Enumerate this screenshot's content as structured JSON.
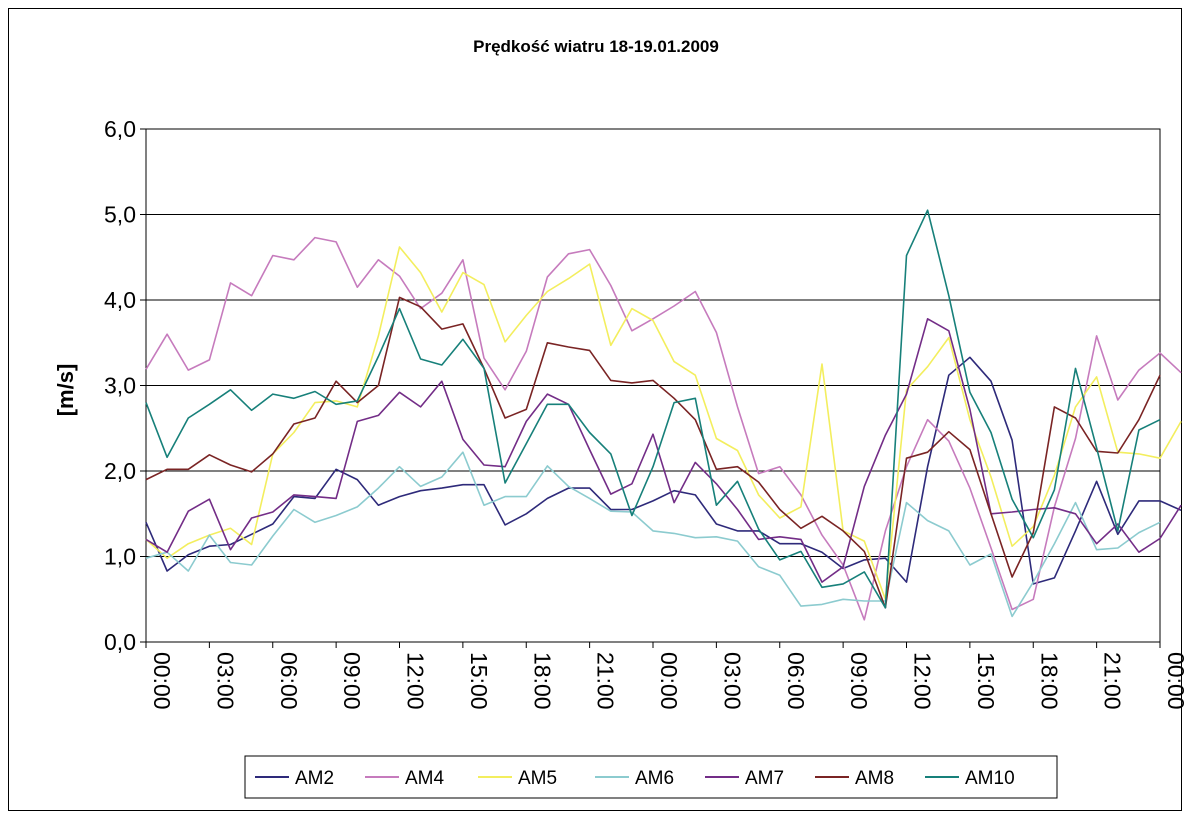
{
  "chart_data": {
    "type": "line",
    "title": "Prędkość wiatru  18-19.01.2009",
    "ylabel": "[m/s]",
    "xlabel": "",
    "ylim": [
      0,
      6
    ],
    "yticks": [
      "0,0",
      "1,0",
      "2,0",
      "3,0",
      "4,0",
      "5,0",
      "6,0"
    ],
    "x_tick_labels": [
      "00:00",
      "03:00",
      "06:00",
      "09:00",
      "12:00",
      "15:00",
      "18:00",
      "21:00",
      "00:00",
      "03:00",
      "06:00",
      "09:00",
      "12:00",
      "15:00",
      "18:00",
      "21:00",
      "00:00"
    ],
    "grid": "horizontal",
    "legend_position": "bottom",
    "series": [
      {
        "name": "AM2",
        "color": "#2e2a7a",
        "values": [
          1.4,
          0.83,
          1.02,
          1.12,
          1.14,
          1.26,
          1.38,
          1.7,
          1.68,
          2.02,
          1.9,
          1.6,
          1.7,
          1.77,
          1.8,
          1.84,
          1.84,
          1.37,
          1.5,
          1.68,
          1.8,
          1.8,
          1.55,
          1.55,
          1.65,
          1.77,
          1.72,
          1.38,
          1.3,
          1.3,
          1.15,
          1.15,
          1.05,
          0.86,
          0.96,
          0.98,
          0.7,
          2.05,
          3.12,
          3.33,
          3.05,
          2.36,
          0.68,
          0.75,
          1.3,
          1.88,
          1.26,
          1.65,
          1.65,
          1.54
        ]
      },
      {
        "name": "AM4",
        "color": "#c67bbd",
        "values": [
          3.19,
          3.6,
          3.18,
          3.3,
          4.2,
          4.05,
          4.52,
          4.47,
          4.73,
          4.68,
          4.15,
          4.47,
          4.28,
          3.9,
          4.08,
          4.47,
          3.32,
          2.95,
          3.4,
          4.27,
          4.54,
          4.59,
          4.17,
          3.64,
          3.78,
          3.93,
          4.1,
          3.62,
          2.75,
          1.97,
          2.05,
          1.72,
          1.25,
          0.9,
          0.26,
          1.3,
          2.05,
          2.6,
          2.35,
          1.8,
          1.1,
          0.38,
          0.5,
          1.58,
          2.38,
          3.58,
          2.83,
          3.18,
          3.38,
          3.15
        ]
      },
      {
        "name": "AM5",
        "color": "#f3ee5e",
        "values": [
          1.2,
          0.98,
          1.15,
          1.25,
          1.33,
          1.14,
          2.2,
          2.45,
          2.8,
          2.82,
          2.75,
          3.58,
          4.62,
          4.32,
          3.86,
          4.32,
          4.18,
          3.51,
          3.82,
          4.1,
          4.25,
          4.42,
          3.47,
          3.9,
          3.76,
          3.28,
          3.12,
          2.38,
          2.24,
          1.72,
          1.45,
          1.58,
          3.25,
          1.3,
          1.18,
          0.5,
          2.95,
          3.22,
          3.56,
          2.6,
          1.93,
          1.12,
          1.35,
          1.95,
          2.75,
          3.1,
          2.22,
          2.2,
          2.15,
          2.58
        ]
      },
      {
        "name": "AM6",
        "color": "#8ccbcf",
        "values": [
          0.98,
          1.05,
          0.83,
          1.25,
          0.93,
          0.9,
          1.24,
          1.55,
          1.4,
          1.48,
          1.58,
          1.8,
          2.05,
          1.82,
          1.93,
          2.22,
          1.6,
          1.7,
          1.7,
          2.06,
          1.82,
          1.68,
          1.53,
          1.52,
          1.3,
          1.27,
          1.22,
          1.23,
          1.18,
          0.88,
          0.78,
          0.42,
          0.44,
          0.5,
          0.48,
          0.48,
          1.63,
          1.42,
          1.3,
          0.9,
          1.03,
          0.3,
          0.7,
          1.15,
          1.63,
          1.08,
          1.1,
          1.28,
          1.4
        ]
      },
      {
        "name": "AM7",
        "color": "#732d87",
        "values": [
          1.2,
          1.05,
          1.53,
          1.67,
          1.08,
          1.45,
          1.52,
          1.72,
          1.7,
          1.68,
          2.58,
          2.65,
          2.92,
          2.75,
          3.05,
          2.37,
          2.07,
          2.05,
          2.58,
          2.9,
          2.78,
          2.25,
          1.73,
          1.85,
          2.43,
          1.63,
          2.1,
          1.85,
          1.55,
          1.2,
          1.23,
          1.2,
          0.7,
          0.88,
          1.82,
          2.42,
          2.9,
          3.78,
          3.64,
          2.72,
          1.5,
          1.52,
          1.55,
          1.57,
          1.5,
          1.15,
          1.38,
          1.05,
          1.21,
          1.6
        ]
      },
      {
        "name": "AM8",
        "color": "#7a2424",
        "values": [
          1.9,
          2.02,
          2.02,
          2.19,
          2.07,
          1.99,
          2.2,
          2.55,
          2.62,
          3.05,
          2.8,
          3.0,
          4.03,
          3.92,
          3.66,
          3.72,
          3.2,
          2.62,
          2.72,
          3.5,
          3.45,
          3.41,
          3.06,
          3.03,
          3.06,
          2.85,
          2.6,
          2.02,
          2.05,
          1.87,
          1.55,
          1.33,
          1.47,
          1.3,
          1.06,
          0.4,
          2.15,
          2.22,
          2.46,
          2.25,
          1.5,
          0.76,
          1.28,
          2.75,
          2.62,
          2.23,
          2.21,
          2.6,
          3.12
        ]
      },
      {
        "name": "AM10",
        "color": "#17807a",
        "values": [
          2.8,
          2.16,
          2.62,
          2.78,
          2.95,
          2.71,
          2.9,
          2.85,
          2.93,
          2.78,
          2.82,
          3.34,
          3.9,
          3.31,
          3.24,
          3.54,
          3.2,
          1.86,
          2.32,
          2.78,
          2.78,
          2.45,
          2.2,
          1.48,
          2.05,
          2.8,
          2.85,
          1.6,
          1.88,
          1.32,
          0.96,
          1.06,
          0.64,
          0.68,
          0.82,
          0.4,
          4.52,
          5.05,
          4.05,
          2.92,
          2.45,
          1.67,
          1.22,
          1.78,
          3.2,
          2.27,
          1.3,
          2.48,
          2.6
        ]
      }
    ]
  }
}
